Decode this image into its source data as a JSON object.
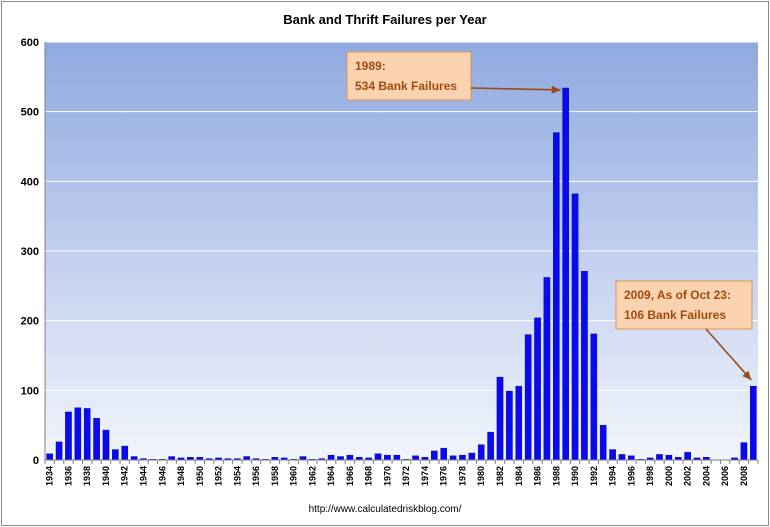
{
  "chart_data": {
    "type": "bar",
    "title": "Bank and Thrift Failures per Year",
    "xlabel": "",
    "ylabel": "",
    "ylim": [
      0,
      600
    ],
    "yticks": [
      0,
      100,
      200,
      300,
      400,
      500,
      600
    ],
    "grid": true,
    "colors": {
      "bar": "#0a0af0",
      "plot_top": "#8fa9e0",
      "plot_bottom": "#f2f5fc",
      "gridline": "#ffffff"
    },
    "categories": [
      "1934",
      "1935",
      "1936",
      "1937",
      "1938",
      "1939",
      "1940",
      "1941",
      "1942",
      "1943",
      "1944",
      "1945",
      "1946",
      "1947",
      "1948",
      "1949",
      "1950",
      "1951",
      "1952",
      "1953",
      "1954",
      "1955",
      "1956",
      "1957",
      "1958",
      "1959",
      "1960",
      "1961",
      "1962",
      "1963",
      "1964",
      "1965",
      "1966",
      "1967",
      "1968",
      "1969",
      "1970",
      "1971",
      "1972",
      "1973",
      "1974",
      "1975",
      "1976",
      "1977",
      "1978",
      "1979",
      "1980",
      "1981",
      "1982",
      "1983",
      "1984",
      "1985",
      "1986",
      "1987",
      "1988",
      "1989",
      "1990",
      "1991",
      "1992",
      "1993",
      "1994",
      "1995",
      "1996",
      "1997",
      "1998",
      "1999",
      "2000",
      "2001",
      "2002",
      "2003",
      "2004",
      "2005",
      "2006",
      "2007",
      "2008",
      "2009"
    ],
    "xtick_labels": [
      "1934",
      "1936",
      "1938",
      "1940",
      "1942",
      "1944",
      "1946",
      "1948",
      "1950",
      "1952",
      "1954",
      "1956",
      "1958",
      "1960",
      "1962",
      "1964",
      "1966",
      "1968",
      "1970",
      "1972",
      "1974",
      "1976",
      "1978",
      "1980",
      "1982",
      "1984",
      "1986",
      "1988",
      "1990",
      "1992",
      "1994",
      "1996",
      "1998",
      "2000",
      "2002",
      "2004",
      "2006",
      "2008"
    ],
    "values": [
      9,
      26,
      69,
      75,
      74,
      60,
      43,
      15,
      20,
      5,
      2,
      1,
      1,
      5,
      3,
      4,
      4,
      2,
      3,
      2,
      2,
      5,
      2,
      1,
      4,
      3,
      1,
      5,
      1,
      2,
      7,
      5,
      7,
      4,
      3,
      9,
      7,
      7,
      1,
      6,
      4,
      13,
      17,
      6,
      7,
      10,
      22,
      40,
      119,
      99,
      106,
      180,
      204,
      262,
      470,
      534,
      382,
      271,
      181,
      50,
      15,
      8,
      6,
      1,
      3,
      8,
      7,
      4,
      11,
      3,
      4,
      0,
      0,
      3,
      25,
      106
    ],
    "annotations": [
      {
        "line1": "1989:",
        "line2": "534 Bank Failures",
        "target_year": "1989",
        "target_value": 534
      },
      {
        "line1": "2009,  As of Oct 23:",
        "line2": "106 Bank Failures",
        "target_year": "2009",
        "target_value": 106
      }
    ],
    "source": "http://www.calculatedriskblog.com/"
  }
}
